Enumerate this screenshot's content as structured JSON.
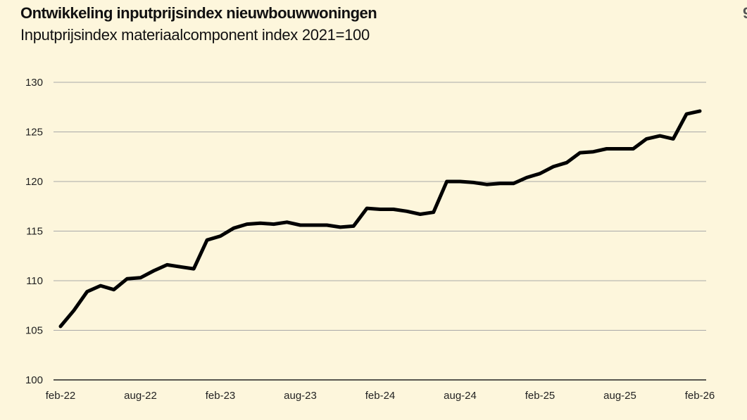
{
  "header": {
    "title": "Ontwikkeling inputprijsindex nieuwbouwwoningen",
    "subtitle": "Inputprijsindex materiaalcomponent index 2021=100",
    "edge_glyph": "9"
  },
  "chart_data": {
    "type": "line",
    "title": "Ontwikkeling inputprijsindex nieuwbouwwoningen",
    "subtitle": "Inputprijsindex materiaalcomponent index 2021=100",
    "xlabel": "",
    "ylabel": "",
    "ylim": [
      100,
      130
    ],
    "yticks": [
      100,
      105,
      110,
      115,
      120,
      125,
      130
    ],
    "grid": "horizontal",
    "legend": "none",
    "line_color": "#000000",
    "grid_color": "#a9a9a9",
    "x": [
      "feb-22",
      "mrt-22",
      "apr-22",
      "mei-22",
      "jun-22",
      "jul-22",
      "aug-22",
      "sep-22",
      "okt-22",
      "nov-22",
      "dec-22",
      "jan-23",
      "feb-23",
      "mrt-23",
      "apr-23",
      "mei-23",
      "jun-23",
      "jul-23",
      "aug-23",
      "sep-23",
      "okt-23",
      "nov-23",
      "dec-23",
      "jan-24",
      "feb-24",
      "mrt-24",
      "apr-24",
      "mei-24",
      "jun-24",
      "jul-24",
      "aug-24",
      "sep-24",
      "okt-24",
      "nov-24",
      "dec-24",
      "jan-25",
      "feb-25",
      "mrt-25",
      "apr-25",
      "mei-25",
      "jun-25",
      "jul-25",
      "aug-25",
      "sep-25",
      "okt-25",
      "nov-25",
      "dec-25",
      "jan-26",
      "feb-26"
    ],
    "xtick_labels": [
      "feb-22",
      "aug-22",
      "feb-23",
      "aug-23",
      "feb-24",
      "aug-24",
      "feb-25",
      "aug-25",
      "feb-26"
    ],
    "series": [
      {
        "values": [
          105.4,
          107.0,
          108.9,
          109.5,
          109.1,
          110.2,
          110.3,
          111.0,
          111.6,
          111.4,
          111.2,
          114.1,
          114.5,
          115.3,
          115.7,
          115.8,
          115.7,
          115.9,
          115.6,
          115.6,
          115.6,
          115.4,
          115.5,
          117.3,
          117.2,
          117.2,
          117.0,
          116.7,
          116.9,
          120.0,
          120.0,
          119.9,
          119.7,
          119.8,
          119.8,
          120.4,
          120.8,
          121.5,
          121.9,
          122.9,
          123.0,
          123.3,
          123.3,
          123.3,
          124.3,
          124.6,
          124.3,
          126.8,
          127.1
        ]
      }
    ]
  }
}
